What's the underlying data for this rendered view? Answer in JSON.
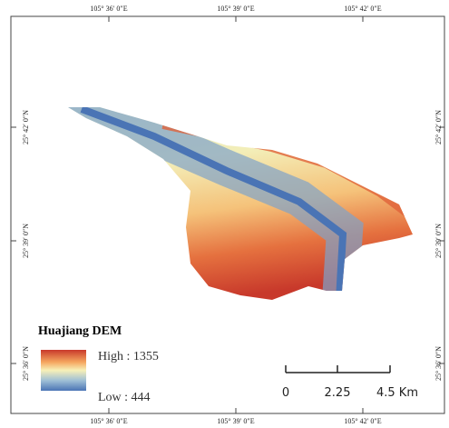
{
  "grid_labels": {
    "top": [
      "105° 36′ 0″E",
      "105° 39′ 0″E",
      "105° 42′ 0″E"
    ],
    "bottom": [
      "105° 36′ 0″E",
      "105° 39′ 0″E",
      "105° 42′ 0″E"
    ],
    "left": [
      "25° 42′ 0″N",
      "25° 39′ 0″N",
      "25° 36′ 0″N"
    ],
    "right": [
      "25° 42′ 0″N",
      "25° 39′ 0″N",
      "25° 36′ 0″N"
    ]
  },
  "legend": {
    "title": "Huajiang DEM",
    "high": "High : 1355",
    "low": "Low : 444"
  },
  "scale_bar": {
    "labels": [
      "0",
      "2.25",
      "4.5 Km"
    ]
  }
}
